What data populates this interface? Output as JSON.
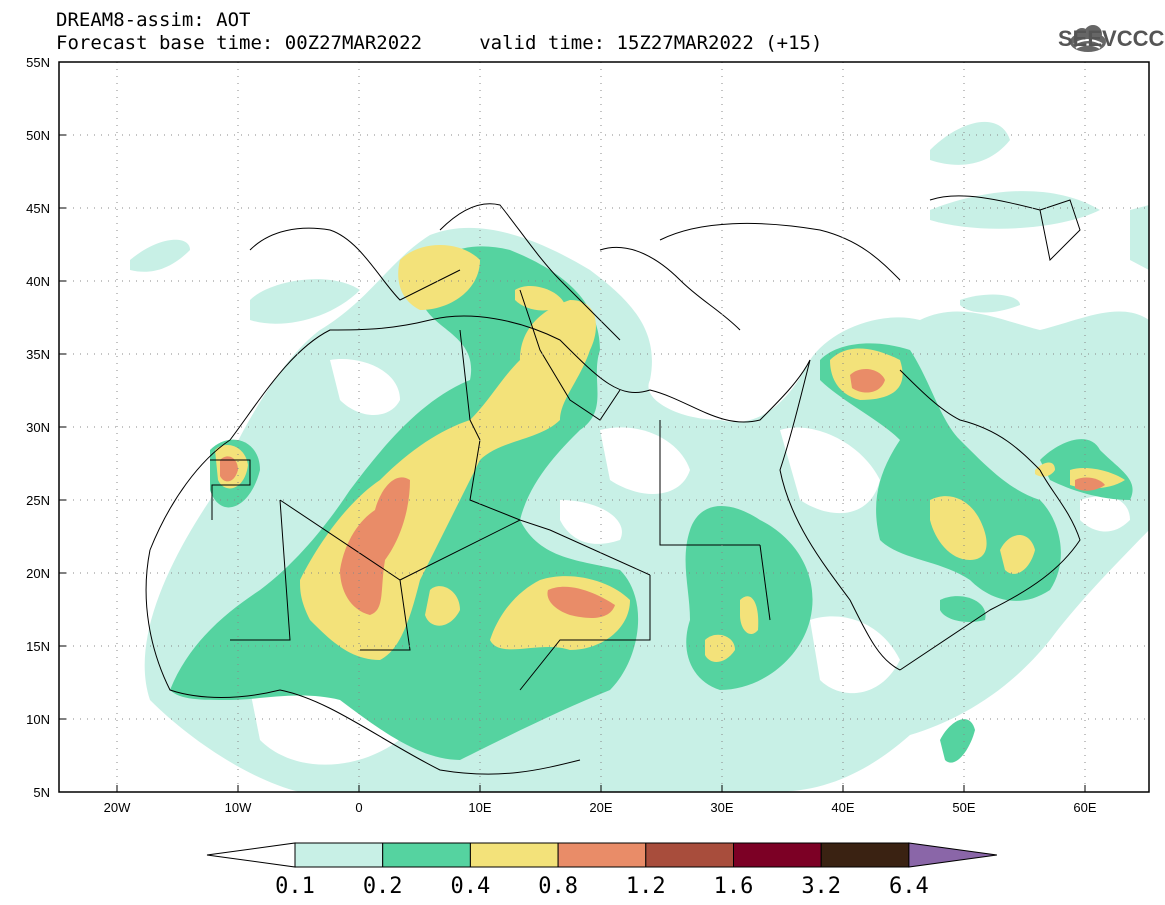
{
  "header": {
    "title_line1": "DREAM8-assim: AOT",
    "title_line2": "Forecast base time: 00Z27MAR2022     valid time: 15Z27MAR2022 (+15)"
  },
  "logo": {
    "text": "SEEVCCC",
    "icon": "cloud-icon"
  },
  "map": {
    "lat_labels": [
      "55N",
      "50N",
      "45N",
      "40N",
      "35N",
      "30N",
      "25N",
      "20N",
      "15N",
      "10N",
      "5N"
    ],
    "lon_labels": [
      "20W",
      "10W",
      "0",
      "10E",
      "20E",
      "30E",
      "40E",
      "50E",
      "60E"
    ],
    "lat_range": [
      5,
      55
    ],
    "lon_range": [
      -25,
      65
    ],
    "lat_step": 5,
    "lon_step": 10
  },
  "colorbar": {
    "levels": [
      "0.1",
      "0.2",
      "0.4",
      "0.8",
      "1.2",
      "1.6",
      "3.2",
      "6.4"
    ],
    "colors": [
      "#ffffff",
      "#c8f0e6",
      "#55d3a0",
      "#f3e27a",
      "#e98c68",
      "#a84d3c",
      "#7c0025",
      "#3a2212",
      "#8a66a8"
    ]
  }
}
